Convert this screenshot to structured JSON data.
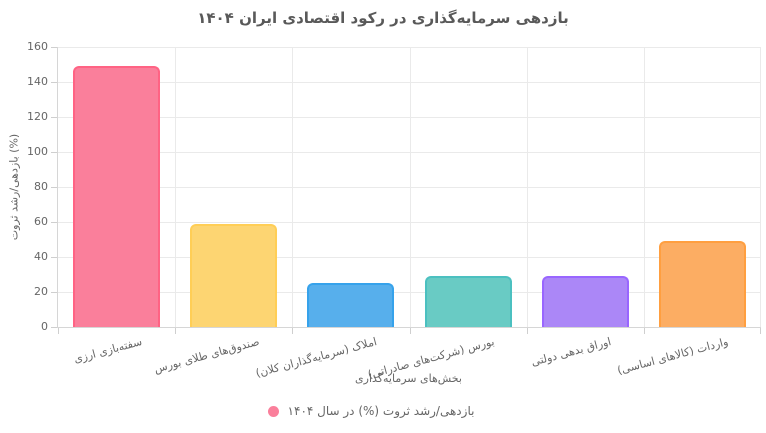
{
  "chart_data": {
    "type": "bar",
    "title": "بازدهی سرمایه‌گذاری در رکود اقتصادی ایران ۱۴۰۴",
    "categories": [
      "سفته‌بازی ارزی",
      "صندوق‌های طلای بورس",
      "املاک (سرمایه‌گذاران کلان)",
      "بورس (شرکت‌های صادراتی)",
      "اوراق بدهی دولتی",
      "واردات (کالاهای اساسی)"
    ],
    "values": [
      149,
      59,
      25,
      29,
      29,
      49
    ],
    "bar_fill_colors": [
      "#FA7F9B",
      "#FDD572",
      "#57AFEC",
      "#69CBC4",
      "#AB87F7",
      "#FCAD63"
    ],
    "bar_border_colors": [
      "#FF6384",
      "#FFCE56",
      "#36A2EB",
      "#4BC0C0",
      "#9966FF",
      "#FF9F40"
    ],
    "xlabel": "بخش‌های سرمایه‌گذاری",
    "ylabel": "بازدهی/رشد ثروت (%)",
    "ylim": [
      0,
      160
    ],
    "yticks": [
      0,
      20,
      40,
      60,
      80,
      100,
      120,
      140,
      160
    ],
    "grid": true,
    "legend": {
      "position": "bottom",
      "marker": "circle",
      "marker_color": "#FA7F9B",
      "label": "بازدهی/رشد ثروت (%) در سال ۱۴۰۴"
    }
  }
}
